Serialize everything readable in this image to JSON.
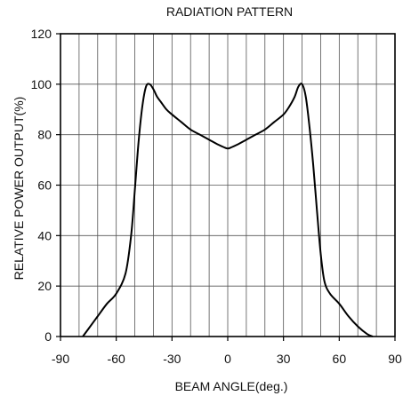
{
  "chart_data": {
    "type": "line",
    "title": "RADIATION PATTERN",
    "xlabel": "BEAM ANGLE(deg.)",
    "ylabel": "RELATIVE POWER OUTPUT(%)",
    "xlim": [
      -90,
      90
    ],
    "ylim": [
      0,
      120
    ],
    "xticks": [
      "-90",
      "-60",
      "-30",
      "0",
      "30",
      "60",
      "90"
    ],
    "yticks": [
      "0",
      "20",
      "40",
      "60",
      "80",
      "100",
      "120"
    ],
    "x_minor_grid_step": 10,
    "y_grid_step": 20,
    "grid": true,
    "series": [
      {
        "x": [
          -78,
          -75,
          -70,
          -65,
          -60,
          -55,
          -52,
          -50,
          -48,
          -46,
          -44,
          -42,
          -40,
          -38,
          -36,
          -33,
          -30,
          -25,
          -20,
          -15,
          -10,
          -5,
          -2,
          0,
          2,
          5,
          10,
          15,
          20,
          25,
          30,
          33,
          36,
          38,
          40,
          42,
          44,
          46,
          48,
          50,
          52,
          55,
          60,
          65,
          70,
          75,
          78
        ],
        "y": [
          0,
          3,
          8,
          13,
          17,
          25,
          40,
          58,
          77,
          91,
          99,
          100,
          98,
          95,
          93,
          90,
          88,
          85,
          82,
          80,
          78,
          76,
          75,
          74.5,
          75,
          76,
          78,
          80,
          82,
          85,
          88,
          91,
          95,
          99,
          100,
          95,
          83,
          68,
          50,
          33,
          22,
          17,
          13,
          8,
          4,
          1,
          0
        ]
      }
    ]
  }
}
